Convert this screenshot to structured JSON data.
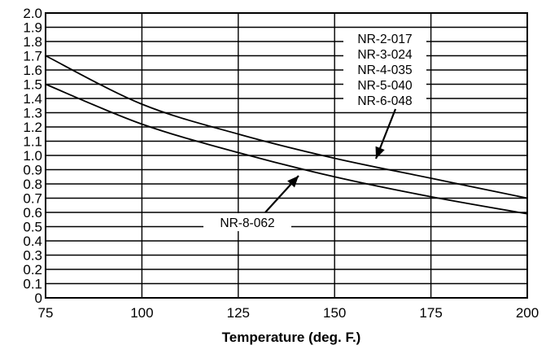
{
  "chart_data": {
    "type": "line",
    "title": "",
    "xlabel": "Temperature (deg. F.)",
    "ylabel": "",
    "xlim": [
      75,
      200
    ],
    "ylim": [
      0,
      2.0
    ],
    "x_ticks": [
      "75",
      "100",
      "125",
      "150",
      "175",
      "200"
    ],
    "y_ticks": [
      "0",
      "0.1",
      "0.2",
      "0.3",
      "0.4",
      "0.5",
      "0.6",
      "0.7",
      "0.8",
      "0.9",
      "1.0",
      "1.1",
      "1.2",
      "1.3",
      "1.4",
      "1.5",
      "1.6",
      "1.7",
      "1.8",
      "1.9",
      "2.0"
    ],
    "grid": true,
    "series": [
      {
        "name": "NR-2-017 / NR-3-024 / NR-4-035 / NR-5-040 / NR-6-048",
        "x": [
          75,
          100,
          125,
          150,
          175,
          200
        ],
        "y": [
          1.7,
          1.36,
          1.15,
          0.98,
          0.84,
          0.7
        ]
      },
      {
        "name": "NR-8-062",
        "x": [
          75,
          100,
          125,
          150,
          175,
          200
        ],
        "y": [
          1.5,
          1.22,
          1.02,
          0.85,
          0.71,
          0.59
        ]
      }
    ],
    "annotations": {
      "upper_group": [
        "NR-2-017",
        "NR-3-024",
        "NR-4-035",
        "NR-5-040",
        "NR-6-048"
      ],
      "lower_label": "NR-8-062"
    }
  }
}
